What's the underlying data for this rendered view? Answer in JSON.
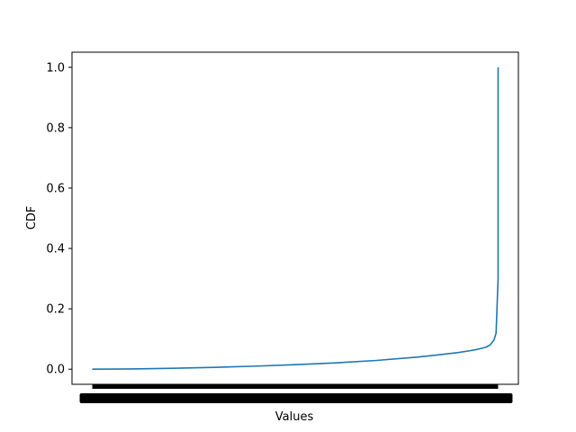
{
  "chart_data": {
    "type": "line",
    "title": "",
    "xlabel": "Values",
    "ylabel": "CDF",
    "ylim": [
      -0.05,
      1.05
    ],
    "yticks": [
      0.0,
      0.2,
      0.4,
      0.6,
      0.8,
      1.0
    ],
    "ytick_labels": [
      "0.0",
      "0.2",
      "0.4",
      "0.6",
      "0.8",
      "1.0"
    ],
    "xlim": [
      -0.05,
      1.05
    ],
    "x_tick_labels_overlapping": true,
    "grid": false,
    "legend": "none",
    "series": [
      {
        "color": "#1f77b4",
        "x": [
          0.0,
          0.1,
          0.2,
          0.3,
          0.4,
          0.5,
          0.6,
          0.7,
          0.8,
          0.85,
          0.9,
          0.93,
          0.95,
          0.97,
          0.98,
          0.99,
          0.995,
          1.0,
          1.0
        ],
        "y": [
          0.0,
          0.001,
          0.003,
          0.006,
          0.01,
          0.015,
          0.021,
          0.029,
          0.04,
          0.047,
          0.055,
          0.061,
          0.066,
          0.073,
          0.08,
          0.097,
          0.12,
          0.3,
          1.0
        ]
      }
    ]
  }
}
